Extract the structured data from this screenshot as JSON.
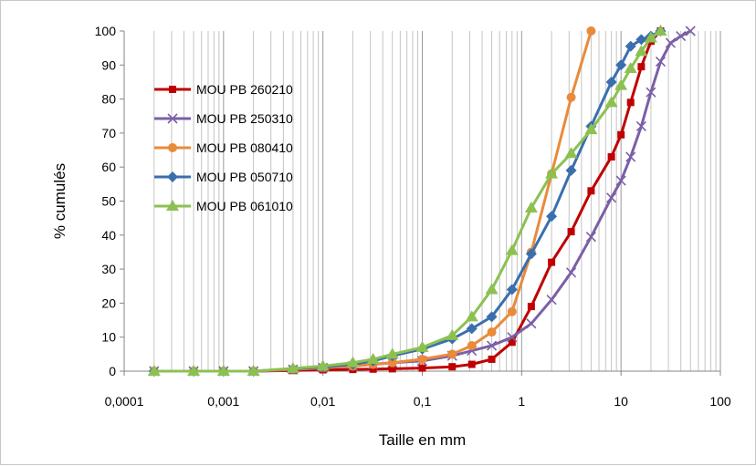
{
  "chart_data": {
    "type": "line",
    "title": "",
    "xlabel": "Taille en mm",
    "ylabel": "% cumulés",
    "x_scale": "log",
    "xlim": [
      0.0001,
      100
    ],
    "ylim": [
      0,
      100
    ],
    "x_tick_labels": [
      "0,0001",
      "0,001",
      "0,01",
      "0,1",
      "1",
      "10",
      "100"
    ],
    "y_tick_labels": [
      "0",
      "10",
      "20",
      "30",
      "40",
      "50",
      "60",
      "70",
      "80",
      "90",
      "100"
    ],
    "grid": "vertical-log",
    "legend_position": "left-inside",
    "series": [
      {
        "name": "MOU PB 260210",
        "color": "#c00000",
        "marker": "square",
        "x": [
          0.0002,
          0.0005,
          0.001,
          0.002,
          0.005,
          0.01,
          0.02,
          0.032,
          0.05,
          0.1,
          0.2,
          0.315,
          0.5,
          0.8,
          1.25,
          2,
          3.15,
          5,
          8,
          10,
          12.5,
          16,
          20,
          25
        ],
        "y": [
          0,
          0,
          0,
          0,
          0.2,
          0.4,
          0.5,
          0.6,
          0.7,
          0.9,
          1.3,
          2.0,
          3.5,
          8.5,
          19,
          32,
          41,
          53,
          63,
          69.5,
          79,
          89.5,
          97,
          100
        ]
      },
      {
        "name": "MOU PB 250310",
        "color": "#7b5fa6",
        "marker": "x",
        "x": [
          0.0002,
          0.0005,
          0.001,
          0.002,
          0.005,
          0.01,
          0.02,
          0.032,
          0.05,
          0.1,
          0.2,
          0.315,
          0.5,
          0.8,
          1.25,
          2,
          3.15,
          5,
          8,
          10,
          12.5,
          16,
          20,
          25,
          31.5,
          40,
          50
        ],
        "y": [
          0,
          0,
          0,
          0,
          0.5,
          1.0,
          1.5,
          2.0,
          2.5,
          3.0,
          4.5,
          6.0,
          7.5,
          10,
          14,
          21,
          29,
          39.5,
          51,
          56,
          63,
          72,
          82,
          91,
          96.5,
          98.5,
          100
        ]
      },
      {
        "name": "MOU PB 080410",
        "color": "#e88b3a",
        "marker": "circle",
        "x": [
          0.0002,
          0.0005,
          0.001,
          0.002,
          0.005,
          0.01,
          0.02,
          0.032,
          0.05,
          0.1,
          0.2,
          0.315,
          0.5,
          0.8,
          1.25,
          2,
          3.15,
          5
        ],
        "y": [
          0,
          0,
          0,
          0,
          0.5,
          1.0,
          1.5,
          2.0,
          2.5,
          3.5,
          5.0,
          7.5,
          11.5,
          17.5,
          35,
          58,
          80.5,
          100
        ]
      },
      {
        "name": "MOU PB 050710",
        "color": "#3a6fae",
        "marker": "diamond",
        "x": [
          0.0002,
          0.0005,
          0.001,
          0.002,
          0.005,
          0.01,
          0.02,
          0.032,
          0.05,
          0.1,
          0.2,
          0.315,
          0.5,
          0.8,
          1.25,
          2,
          3.15,
          5,
          8,
          10,
          12.5,
          16,
          20,
          25
        ],
        "y": [
          0,
          0,
          0,
          0,
          0.7,
          1.2,
          2.0,
          3.0,
          4.5,
          6.5,
          9.5,
          12.5,
          16,
          24,
          34.5,
          45.5,
          59,
          72,
          85,
          90,
          95.5,
          97.5,
          98.5,
          100
        ]
      },
      {
        "name": "MOU PB 061010",
        "color": "#8cc152",
        "marker": "triangle",
        "x": [
          0.0002,
          0.0005,
          0.001,
          0.002,
          0.005,
          0.01,
          0.02,
          0.032,
          0.05,
          0.1,
          0.2,
          0.315,
          0.5,
          0.8,
          1.25,
          2,
          3.15,
          5,
          8,
          10,
          12.5,
          16,
          20,
          25
        ],
        "y": [
          0,
          0,
          0,
          0,
          0.8,
          1.5,
          2.5,
          3.5,
          5.0,
          7.0,
          10.5,
          16,
          24,
          35.5,
          48,
          58,
          64,
          71,
          79,
          84,
          89,
          94,
          98,
          100
        ]
      }
    ]
  }
}
